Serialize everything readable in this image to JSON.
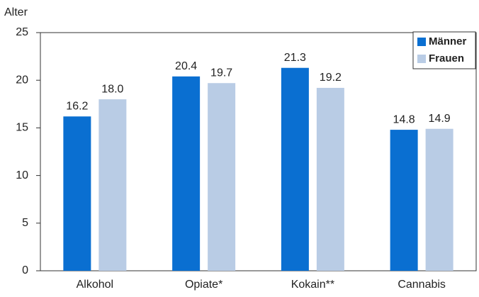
{
  "chart_data": {
    "type": "bar",
    "y_label": "Alter",
    "categories": [
      "Alkohol",
      "Opiate*",
      "Kokain**",
      "Cannabis"
    ],
    "series": [
      {
        "name": "Männer",
        "color": "#0a6fd1",
        "values": [
          16.2,
          20.4,
          21.3,
          14.8
        ]
      },
      {
        "name": "Frauen",
        "color": "#b9cce5",
        "values": [
          18,
          19.7,
          19.2,
          14.9
        ],
        "value_labels": [
          "18.0",
          "19.7",
          "19.2",
          "14.9"
        ]
      }
    ],
    "ylim": [
      0,
      25
    ],
    "yticks": [
      0,
      5,
      10,
      15,
      20,
      25
    ],
    "legend": "top-right"
  }
}
